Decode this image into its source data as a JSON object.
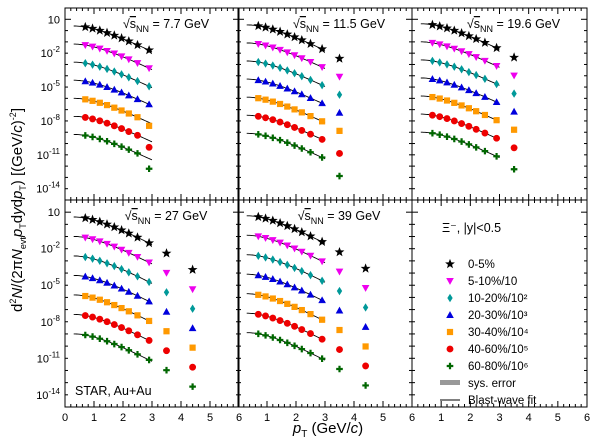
{
  "chart_data": {
    "type": "scatter",
    "y_scale": "log",
    "grid": false,
    "xlabel": "p_T (GeV/c)",
    "ylabel": "d²N/(2πN_evt p_T dy dp_T) [(GeV/c)⁻²]",
    "xlim": [
      0,
      6
    ],
    "ylim": [
      1e-15,
      100
    ],
    "x_ticks": [
      "0",
      "1",
      "2",
      "3",
      "4",
      "5",
      "6"
    ],
    "particle_label": "Ξ⁻, |y|<0.5",
    "experiment_label": "STAR, Au+Au",
    "legend_position": "right panel of bottom row",
    "legend": [
      {
        "label": "0-5%",
        "marker": "star",
        "color": "#000000"
      },
      {
        "label": "5-10%/10",
        "marker": "triangle-down",
        "color": "#ee00ee"
      },
      {
        "label": "10-20%/10²",
        "marker": "diamond",
        "color": "#009999"
      },
      {
        "label": "20-30%/10³",
        "marker": "triangle-up",
        "color": "#0000dd"
      },
      {
        "label": "30-40%/10⁴",
        "marker": "square",
        "color": "#ff9900"
      },
      {
        "label": "40-60%/10⁵",
        "marker": "circle",
        "color": "#ee0000"
      },
      {
        "label": "60-80%/10⁶",
        "marker": "cross",
        "color": "#006600"
      },
      {
        "label": "sys. error",
        "marker": "band",
        "color": "#999999"
      },
      {
        "label": "Blast-wave fit",
        "marker": "line",
        "color": "#000000"
      }
    ],
    "fit_params": [
      {
        "ymax_log": 0.35,
        "m": 3.3
      },
      {
        "ymax_log": 0.45,
        "m": 3.0
      },
      {
        "ymax_log": 0.55,
        "m": 2.8
      },
      {
        "ymax_log": 0.55,
        "m": 2.6
      },
      {
        "ymax_log": 0.65,
        "m": 2.6
      }
    ],
    "panels": [
      {
        "label": "√s_NN = 7.7 GeV",
        "xs": [
          0.7,
          0.95,
          1.2,
          1.45,
          1.7,
          1.95,
          2.2,
          2.5,
          2.9
        ],
        "last_drop": [
          0,
          0,
          0,
          0,
          0.3,
          0.6,
          0.9
        ]
      },
      {
        "label": "√s_NN = 11.5 GeV",
        "xs": [
          0.7,
          0.95,
          1.2,
          1.45,
          1.7,
          1.95,
          2.2,
          2.5,
          2.9,
          3.5
        ],
        "last_drop": [
          0,
          0,
          0,
          0,
          0,
          0.4,
          0.8
        ]
      },
      {
        "label": "√s_NN = 19.6 GeV",
        "xs": [
          0.7,
          0.95,
          1.2,
          1.45,
          1.7,
          1.95,
          2.2,
          2.5,
          2.9,
          3.5
        ],
        "last_drop": [
          0,
          0,
          0,
          0,
          0,
          0,
          0.3
        ]
      },
      {
        "label": "√s_NN = 27 GeV",
        "xs": [
          0.7,
          0.95,
          1.2,
          1.45,
          1.7,
          1.95,
          2.2,
          2.5,
          2.9,
          3.5,
          4.4
        ],
        "last_drop": [
          0,
          0,
          0,
          0,
          0,
          0,
          0
        ]
      },
      {
        "label": "√s_NN = 39 GeV",
        "xs": [
          0.7,
          0.95,
          1.2,
          1.45,
          1.7,
          1.95,
          2.2,
          2.5,
          2.9,
          3.5,
          4.4
        ],
        "last_drop": [
          0,
          0,
          0,
          0,
          0,
          0,
          0
        ]
      }
    ]
  }
}
